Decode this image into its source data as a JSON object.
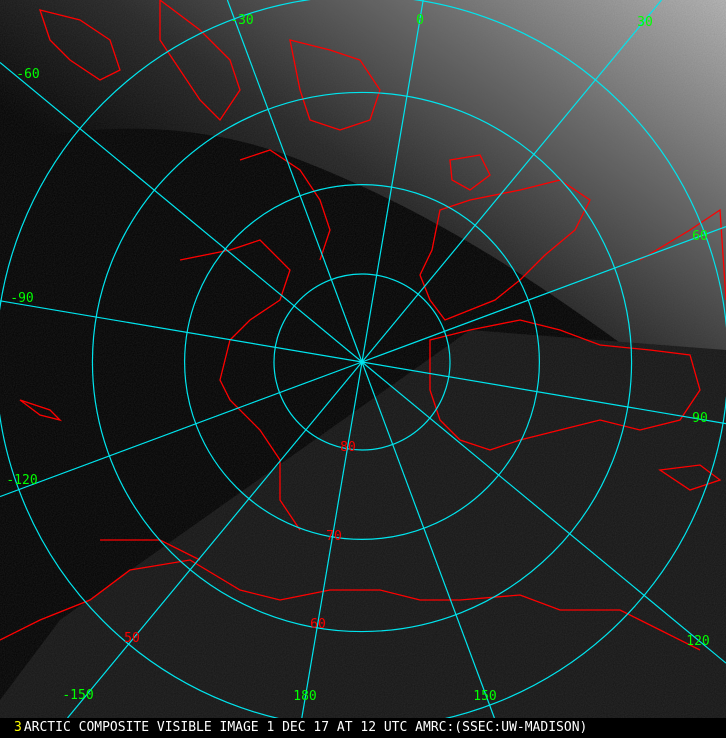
{
  "caption": {
    "frame_number": "3",
    "text": "ARCTIC COMPOSITE VISIBLE IMAGE 1 DEC 17 AT 12 UTC AMRC:(SSEC:UW-MADISON)"
  },
  "map": {
    "projection": "polar stereographic, north pole",
    "latitude_circles": [
      80,
      70,
      60,
      50
    ],
    "latitude_labels": [
      "80",
      "70",
      "60",
      "50"
    ],
    "meridians": [
      0,
      30,
      60,
      90,
      120,
      150,
      180,
      -150,
      -120,
      -90,
      -60,
      -30
    ],
    "longitude_labels": [
      "0",
      "30",
      "60",
      "90",
      "120",
      "150",
      "180",
      "-150",
      "-120",
      "-90",
      "-60",
      "-30"
    ],
    "colors": {
      "grid": "#00e5ee",
      "coastline": "#ff0000",
      "longitude_label": "#00ff00",
      "latitude_label": "#ff0000",
      "frame_number": "#ffff00",
      "caption_text": "#ffffff"
    }
  }
}
